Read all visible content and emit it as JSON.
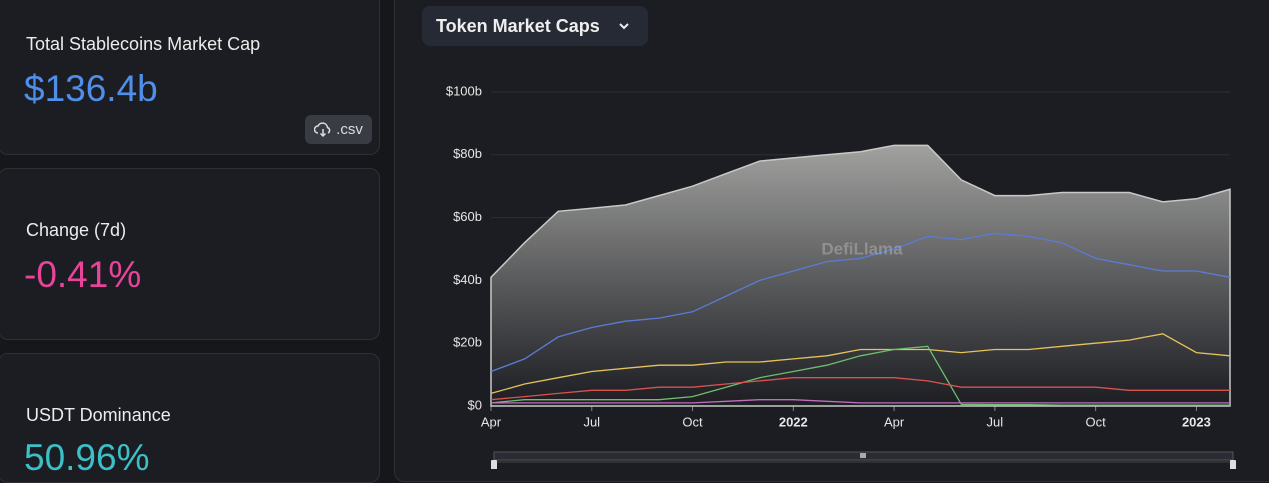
{
  "panels": [
    {
      "label": "Total Stablecoins Market Cap",
      "value": "$136.4b",
      "button": ".csv"
    },
    {
      "label": "Change (7d)",
      "value": "-0.41%"
    },
    {
      "label": "USDT Dominance",
      "value": "50.96%"
    }
  ],
  "dropdown": "Token Market Caps",
  "watermark": "DefiLlama",
  "chart_data": {
    "type": "line",
    "categories": [
      "Apr",
      null,
      null,
      "Jul",
      null,
      null,
      "Oct",
      null,
      null,
      "2022",
      null,
      null,
      "Apr",
      null,
      null,
      "Jul",
      null,
      null,
      "Oct",
      null,
      null,
      "2023",
      null
    ],
    "series": [
      {
        "color": "#c9c9c7",
        "area": true,
        "values": [
          41,
          52,
          62,
          63,
          64,
          67,
          70,
          74,
          78,
          79,
          80,
          81,
          83,
          83,
          72,
          67,
          67,
          68,
          68,
          68,
          65,
          66,
          69
        ]
      },
      {
        "color": "#5b7bd6",
        "values": [
          11,
          15,
          22,
          25,
          27,
          28,
          30,
          35,
          40,
          43,
          46,
          47,
          50,
          54,
          53,
          55,
          54,
          52,
          47,
          45,
          43,
          43,
          41
        ]
      },
      {
        "color": "#e6c35c",
        "values": [
          4,
          7,
          9,
          11,
          12,
          13,
          13,
          14,
          14,
          15,
          16,
          18,
          18,
          18,
          17,
          18,
          18,
          19,
          20,
          21,
          23,
          17,
          16
        ]
      },
      {
        "color": "#6dbf6d",
        "values": [
          1,
          2,
          2,
          2,
          2,
          2,
          3,
          6,
          9,
          11,
          13,
          16,
          18,
          19,
          0.5,
          0.4,
          0.4,
          0.3,
          0.3,
          0.3,
          0.3,
          0.3,
          0.3
        ]
      },
      {
        "color": "#d9534f",
        "values": [
          2,
          3,
          4,
          5,
          5,
          6,
          6,
          7,
          8,
          9,
          9,
          9,
          9,
          8,
          6,
          6,
          6,
          6,
          6,
          5,
          5,
          5,
          5
        ]
      },
      {
        "color": "#c06ec0",
        "values": [
          1,
          1,
          1,
          1,
          1,
          1,
          1,
          1.5,
          2,
          2,
          1.5,
          1,
          1,
          1,
          1,
          1,
          1,
          1,
          1,
          1,
          1,
          1,
          1
        ]
      }
    ],
    "ylim": [
      0,
      100
    ],
    "yticks": [
      {
        "value": 0,
        "label": "$0"
      },
      {
        "value": 20,
        "label": "$20b"
      },
      {
        "value": 40,
        "label": "$40b"
      },
      {
        "value": 60,
        "label": "$60b"
      },
      {
        "value": 80,
        "label": "$80b"
      },
      {
        "value": 100,
        "label": "$100b"
      }
    ],
    "grid": true
  }
}
